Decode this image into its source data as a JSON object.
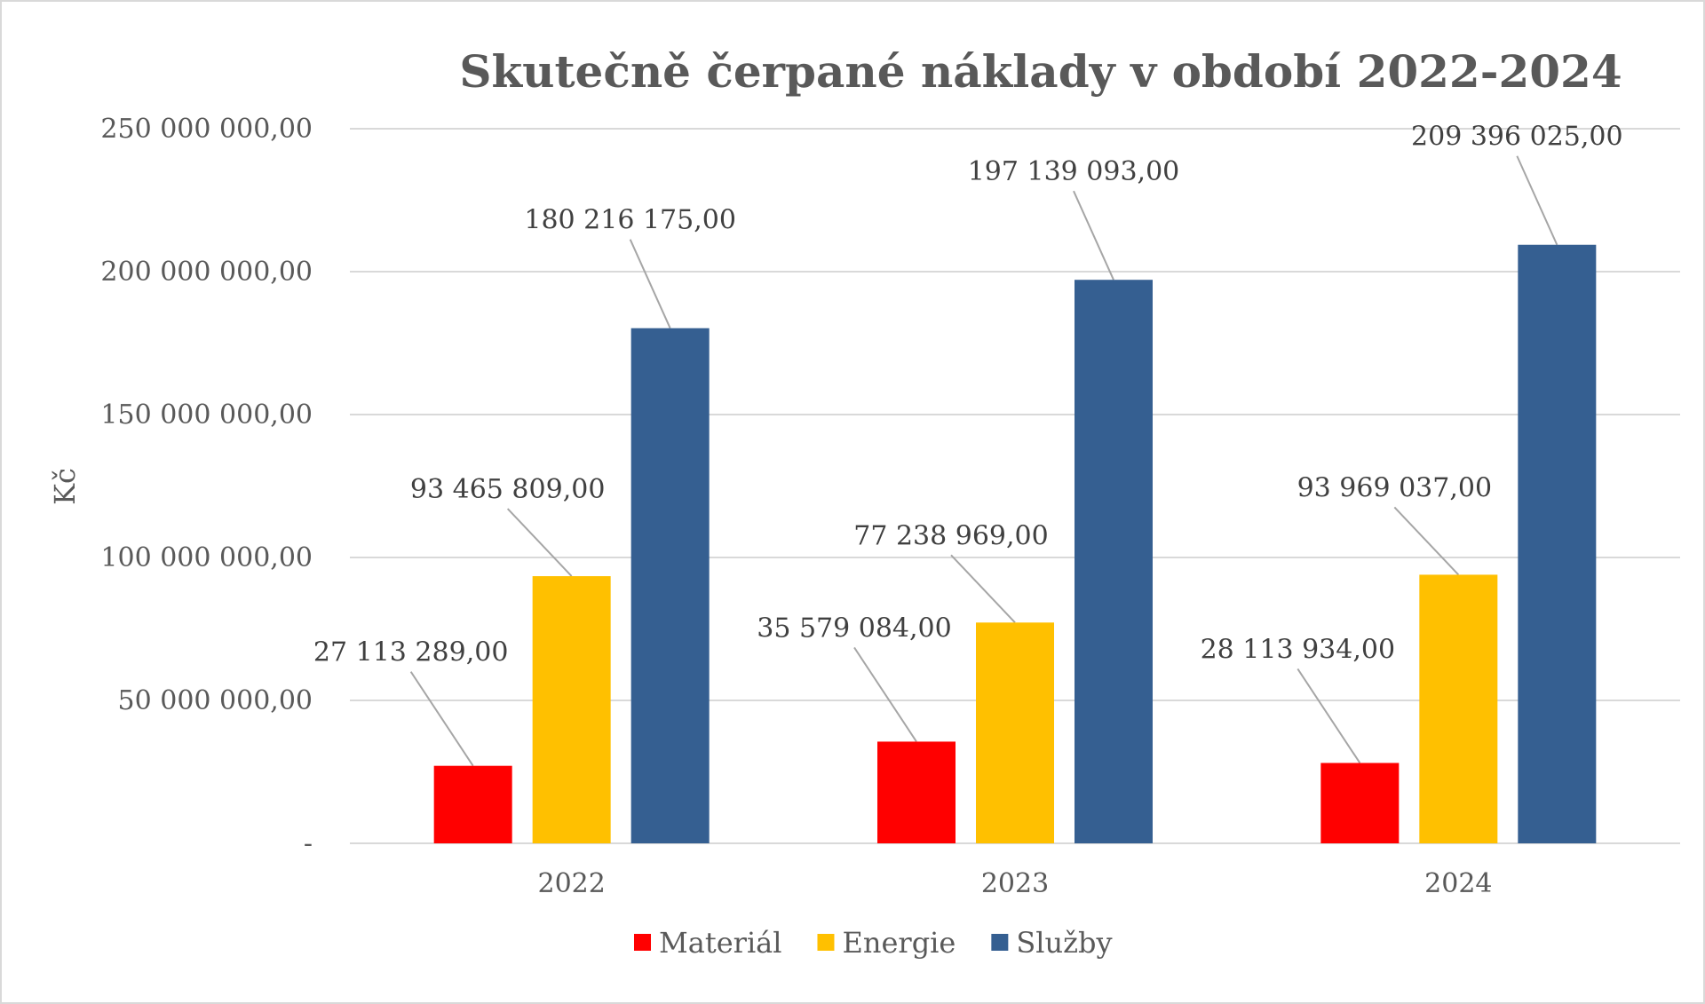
{
  "chart_data": {
    "type": "bar",
    "title": "Skutečně čerpané náklady v období 2022-2024",
    "ylabel": "Kč",
    "xlabel": "",
    "categories": [
      "2022",
      "2023",
      "2024"
    ],
    "series": [
      {
        "name": "Materiál",
        "color": "#ff0000",
        "values": [
          27113289,
          35579084,
          28113934
        ],
        "labels": [
          "27 113 289,00",
          "35 579 084,00",
          "28 113 934,00"
        ]
      },
      {
        "name": "Energie",
        "color": "#ffc000",
        "values": [
          93465809,
          77238969,
          93969037
        ],
        "labels": [
          "93 465 809,00",
          "77 238 969,00",
          "93 969 037,00"
        ]
      },
      {
        "name": "Služby",
        "color": "#355f91",
        "values": [
          180216175,
          197139093,
          209396025
        ],
        "labels": [
          "180 216 175,00",
          "197 139 093,00",
          "209 396 025,00"
        ]
      }
    ],
    "ylim": [
      0,
      250000000
    ],
    "yticks": [
      0,
      50000000,
      100000000,
      150000000,
      200000000,
      250000000
    ],
    "ytick_labels": [
      "-",
      "50 000 000,00",
      "100 000 000,00",
      "150 000 000,00",
      "200 000 000,00",
      "250 000 000,00"
    ],
    "grid": true,
    "legend_position": "bottom"
  }
}
